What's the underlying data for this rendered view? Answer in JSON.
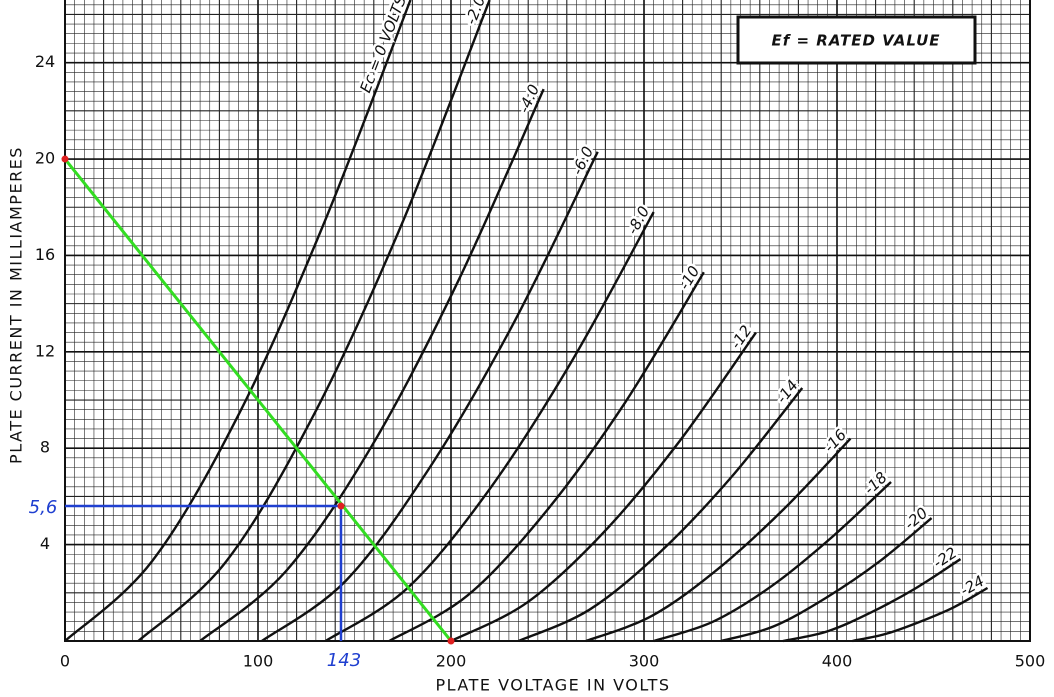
{
  "chart_data": {
    "type": "line",
    "x_label": "PLATE VOLTAGE IN VOLTS",
    "y_label": "PLATE CURRENT IN MILLIAMPERES",
    "annotation": "Ef = RATED VALUE",
    "xlim": [
      0,
      500
    ],
    "ylim": [
      0,
      26.6
    ],
    "xticks": [
      0,
      100,
      200,
      300,
      400,
      500
    ],
    "yticks": [
      4,
      8,
      12,
      16,
      20,
      24
    ],
    "grid": true,
    "color": "#111111",
    "series": [
      {
        "name": "Ec = 0 VOLTS",
        "x": [
          0,
          45,
          90,
          134,
          179
        ],
        "values": [
          0,
          3.3,
          9.4,
          17.3,
          26.6
        ]
      },
      {
        "name": "-2.0",
        "x": [
          38,
          83.5,
          129,
          174.5,
          220
        ],
        "values": [
          0,
          3.3,
          9.4,
          17.3,
          26.6
        ]
      },
      {
        "name": "-4.0",
        "x": [
          70,
          114.5,
          159,
          203.5,
          248
        ],
        "values": [
          0,
          2.9,
          8.1,
          14.9,
          22.9
        ]
      },
      {
        "name": "-6.0",
        "x": [
          102,
          145.5,
          189,
          232.5,
          276
        ],
        "values": [
          0,
          2.5,
          7.2,
          13.2,
          20.3
        ]
      },
      {
        "name": "-8.0",
        "x": [
          135,
          177.5,
          220,
          262.5,
          305
        ],
        "values": [
          0,
          2.2,
          6.3,
          11.6,
          17.8
        ]
      },
      {
        "name": "-10",
        "x": [
          168,
          208.75,
          249.5,
          290.25,
          331
        ],
        "values": [
          0,
          1.9,
          5.4,
          9.9,
          15.3
        ]
      },
      {
        "name": "-12",
        "x": [
          200,
          239.5,
          279,
          318.5,
          358
        ],
        "values": [
          0,
          1.6,
          4.5,
          8.3,
          12.8
        ]
      },
      {
        "name": "-14",
        "x": [
          235,
          271.75,
          308.5,
          345.25,
          382
        ],
        "values": [
          0,
          1.3,
          3.7,
          6.8,
          10.5
        ]
      },
      {
        "name": "-16",
        "x": [
          270,
          304.25,
          338.5,
          372.75,
          407
        ],
        "values": [
          0,
          1.05,
          3.0,
          5.5,
          8.4
        ]
      },
      {
        "name": "-18",
        "x": [
          305,
          335.75,
          366.5,
          397.25,
          428
        ],
        "values": [
          0,
          0.8,
          2.3,
          4.3,
          6.6
        ]
      },
      {
        "name": "-20",
        "x": [
          340,
          367,
          394.5,
          422,
          449
        ],
        "values": [
          0,
          0.6,
          1.8,
          3.3,
          5.1
        ]
      },
      {
        "name": "-22",
        "x": [
          372,
          395,
          418,
          441,
          464
        ],
        "values": [
          0,
          0.4,
          1.2,
          2.2,
          3.4
        ]
      },
      {
        "name": "-24",
        "x": [
          408,
          425.5,
          443,
          460.5,
          478
        ],
        "values": [
          0,
          0.3,
          0.8,
          1.4,
          2.2
        ]
      }
    ],
    "load_line": {
      "x": [
        0,
        200
      ],
      "values": [
        20,
        0
      ],
      "color": "#33dd22",
      "point_color": "#e02020"
    },
    "operating_point": {
      "x": 143,
      "y": 5.6,
      "y_label": "5,6",
      "color": "#1f3fd0"
    }
  }
}
